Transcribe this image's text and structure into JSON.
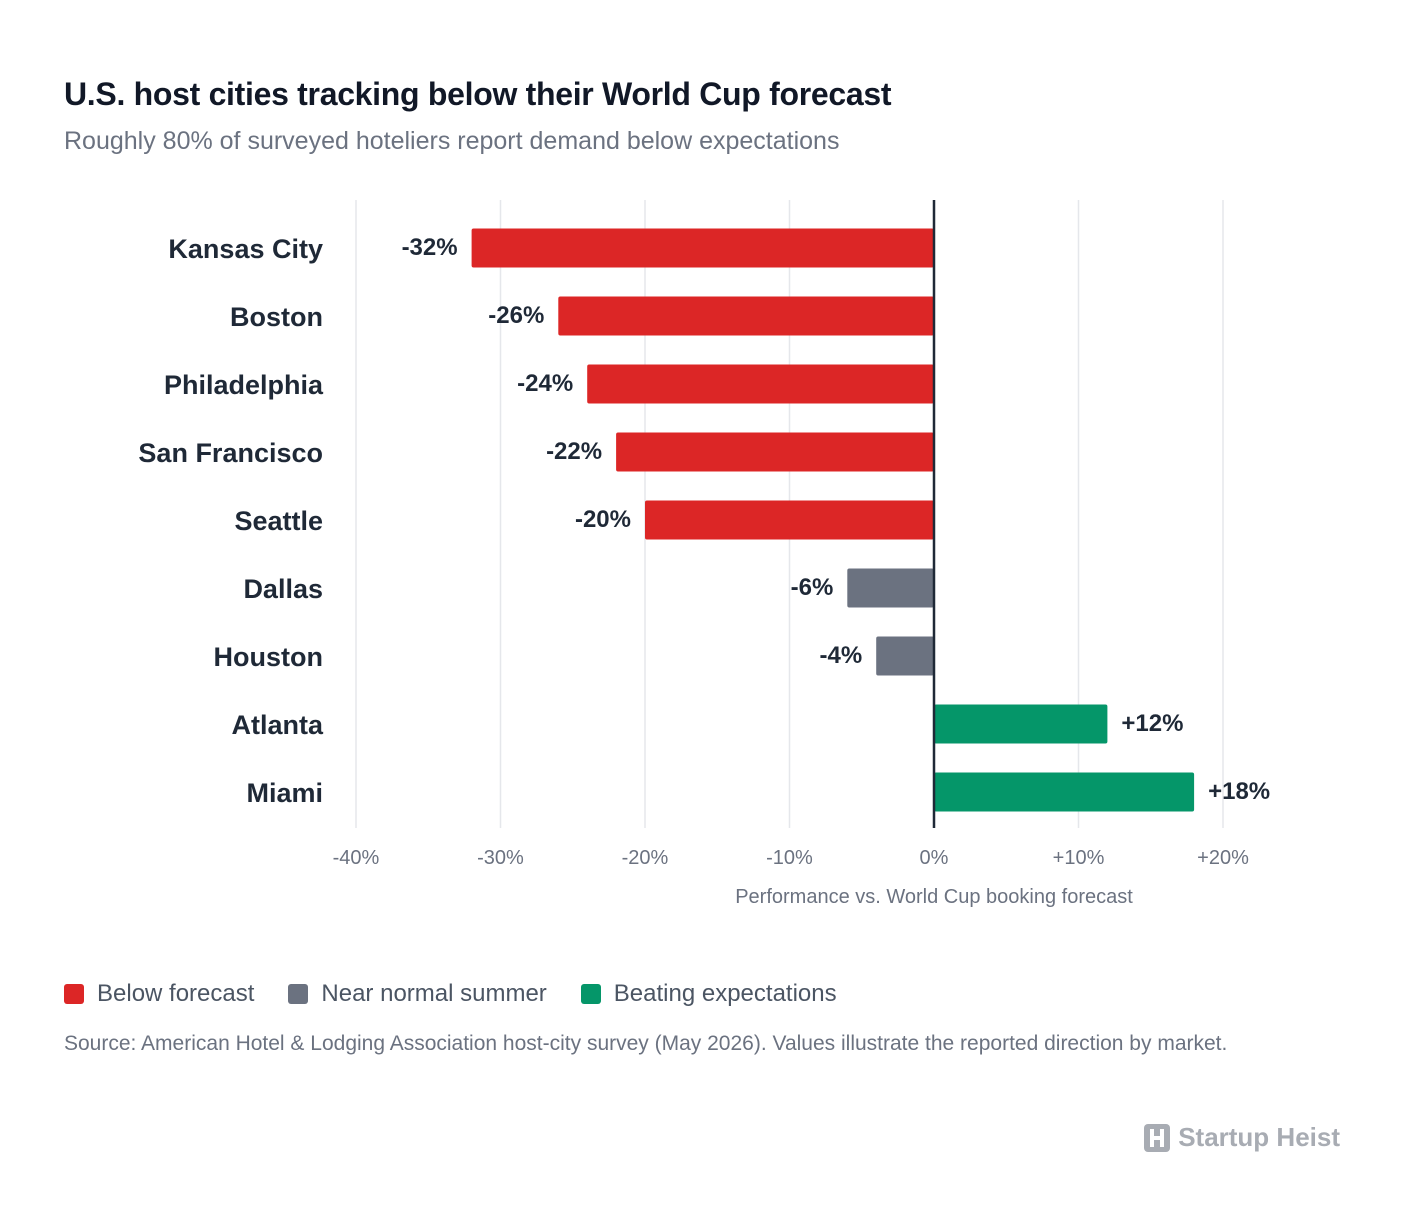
{
  "header": {
    "title": "U.S. host cities tracking below their World Cup forecast",
    "subtitle": "Roughly 80% of surveyed hoteliers report demand below expectations"
  },
  "chart_data": {
    "type": "bar",
    "orientation": "horizontal",
    "categories": [
      "Kansas City",
      "Boston",
      "Philadelphia",
      "San Francisco",
      "Seattle",
      "Dallas",
      "Houston",
      "Atlanta",
      "Miami"
    ],
    "values": [
      -32,
      -26,
      -24,
      -22,
      -20,
      -6,
      -4,
      12,
      18
    ],
    "value_labels": [
      "-32%",
      "-26%",
      "-24%",
      "-22%",
      "-20%",
      "-6%",
      "-4%",
      "+12%",
      "+18%"
    ],
    "groups": [
      "below",
      "below",
      "below",
      "below",
      "below",
      "near",
      "near",
      "beating",
      "beating"
    ],
    "xlim": [
      -40,
      20
    ],
    "xticks": [
      -40,
      -30,
      -20,
      -10,
      0,
      10,
      20
    ],
    "xtick_labels": [
      "-40%",
      "-30%",
      "-20%",
      "-10%",
      "0%",
      "+10%",
      "+20%"
    ],
    "xlabel": "Performance vs. World Cup booking forecast",
    "grid": true,
    "legend_position": "bottom-left",
    "colors": {
      "below": "#dc2626",
      "near": "#6b7280",
      "beating": "#059669",
      "zero_line": "#1f2937",
      "grid": "#e5e7eb"
    }
  },
  "legend": {
    "items": [
      {
        "label": "Below forecast",
        "color": "#dc2626"
      },
      {
        "label": "Near normal summer",
        "color": "#6b7280"
      },
      {
        "label": "Beating expectations",
        "color": "#059669"
      }
    ]
  },
  "footer": {
    "source": "Source: American Hotel & Lodging Association host-city survey (May 2026). Values illustrate the reported direction by market.",
    "brand": "Startup Heist",
    "brand_icon": "building-h-icon"
  }
}
